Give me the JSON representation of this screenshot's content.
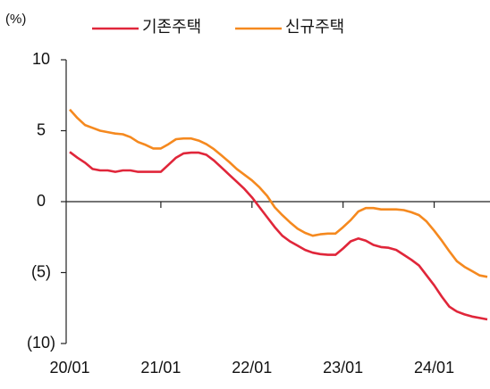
{
  "chart_data": {
    "type": "line",
    "y_label": "(%)",
    "categories": [
      "20/01",
      null,
      null,
      null,
      null,
      null,
      null,
      null,
      null,
      null,
      null,
      null,
      "21/01",
      null,
      null,
      null,
      null,
      null,
      null,
      null,
      null,
      null,
      null,
      null,
      "22/01",
      null,
      null,
      null,
      null,
      null,
      null,
      null,
      null,
      null,
      null,
      null,
      "23/01",
      null,
      null,
      null,
      null,
      null,
      null,
      null,
      null,
      null,
      null,
      null,
      "24/01",
      null,
      null,
      null,
      null,
      null,
      null,
      null
    ],
    "series": [
      {
        "name": "기존주택",
        "color": "#e0263a",
        "values": [
          3.5,
          3.1,
          2.75,
          2.3,
          2.2,
          2.2,
          2.1,
          2.2,
          2.2,
          2.1,
          2.1,
          2.1,
          2.1,
          2.6,
          3.1,
          3.4,
          3.45,
          3.45,
          3.3,
          2.9,
          2.4,
          1.9,
          1.4,
          0.9,
          0.3,
          -0.4,
          -1.1,
          -1.8,
          -2.4,
          -2.8,
          -3.1,
          -3.4,
          -3.6,
          -3.7,
          -3.75,
          -3.75,
          -3.3,
          -2.8,
          -2.6,
          -2.75,
          -3.05,
          -3.2,
          -3.25,
          -3.4,
          -3.75,
          -4.1,
          -4.5,
          -5.2,
          -5.9,
          -6.7,
          -7.4,
          -7.75,
          -7.95,
          -8.1,
          -8.2,
          -8.3
        ]
      },
      {
        "name": "신규주택",
        "color": "#f5891f",
        "values": [
          6.5,
          5.9,
          5.4,
          5.2,
          5.0,
          4.9,
          4.8,
          4.75,
          4.55,
          4.2,
          4.0,
          3.75,
          3.75,
          4.05,
          4.4,
          4.45,
          4.45,
          4.3,
          4.05,
          3.7,
          3.25,
          2.8,
          2.3,
          1.9,
          1.5,
          1.0,
          0.4,
          -0.4,
          -0.95,
          -1.45,
          -1.9,
          -2.2,
          -2.4,
          -2.3,
          -2.25,
          -2.25,
          -1.8,
          -1.3,
          -0.7,
          -0.45,
          -0.45,
          -0.55,
          -0.55,
          -0.55,
          -0.6,
          -0.75,
          -0.95,
          -1.4,
          -2.05,
          -2.75,
          -3.5,
          -4.2,
          -4.6,
          -4.9,
          -5.2,
          -5.3
        ]
      }
    ],
    "ylim": [
      -10,
      10
    ],
    "yticks": [
      {
        "value": -10,
        "label": "(10)"
      },
      {
        "value": -5,
        "label": "(5)"
      },
      0,
      5,
      10
    ],
    "legend": "top"
  }
}
